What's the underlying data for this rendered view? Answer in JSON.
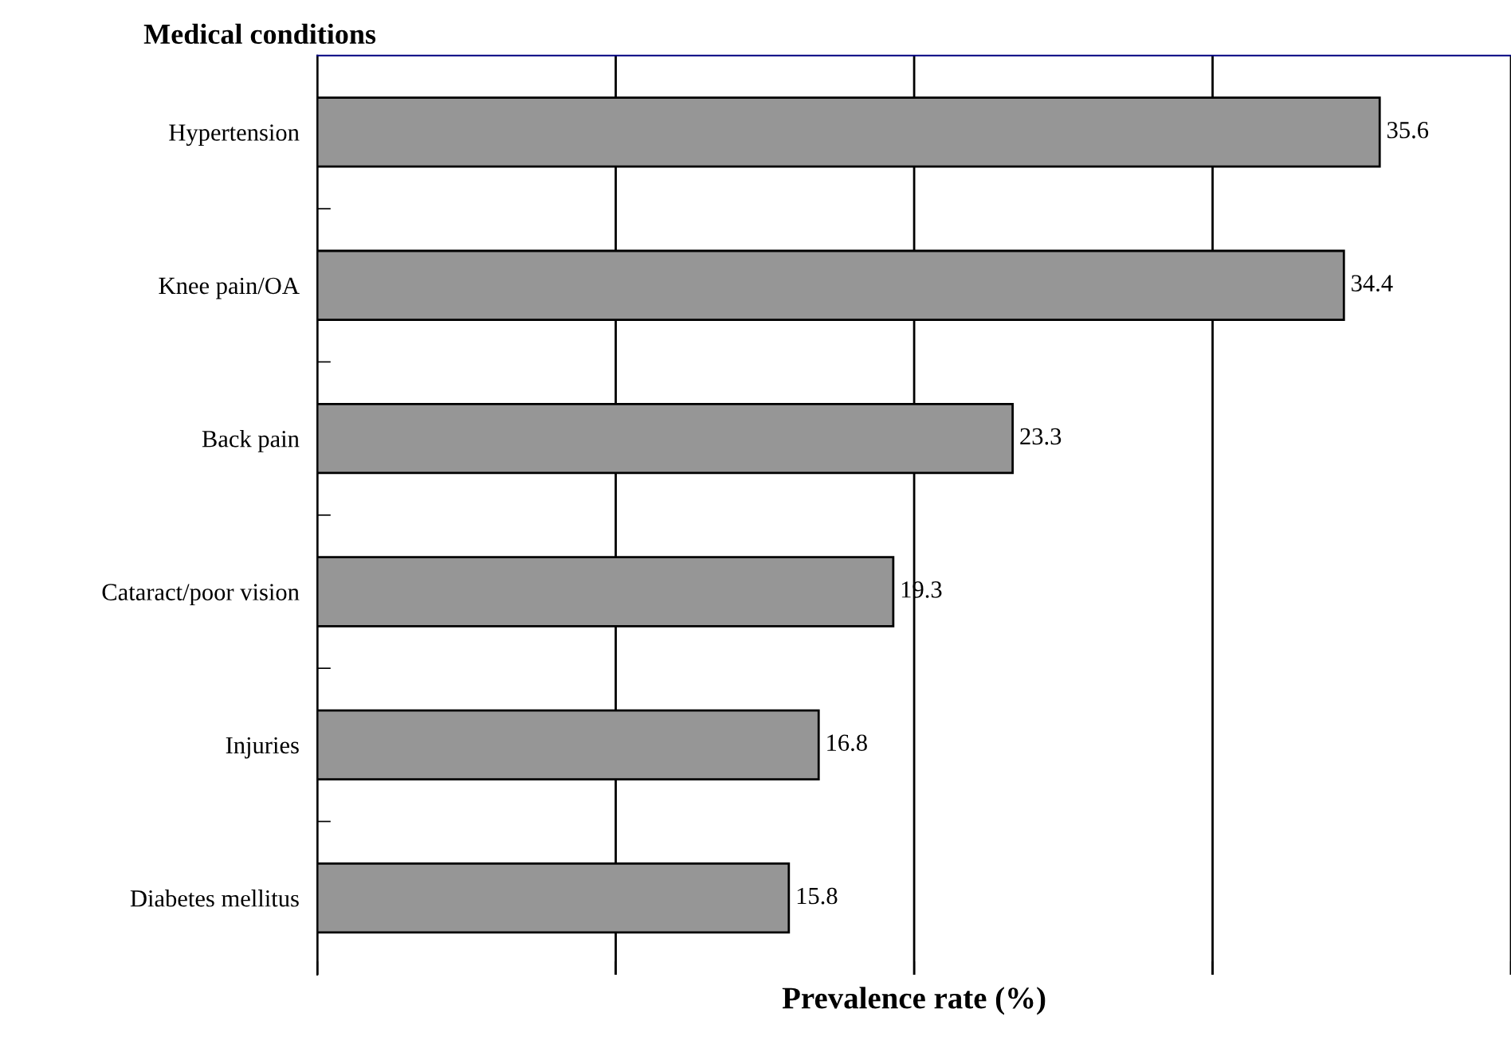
{
  "chart_data": {
    "type": "bar",
    "orientation": "horizontal",
    "title": "Medical conditions",
    "xlabel": "Prevalence rate (%)",
    "categories": [
      "Hypertension",
      "Knee pain/OA",
      "Back pain",
      "Cataract/poor vision",
      "Injuries",
      "Diabetes mellitus"
    ],
    "values": [
      35.6,
      34.4,
      23.3,
      19.3,
      16.8,
      15.8
    ],
    "color": "#969696",
    "data_labels": true,
    "xlim": [
      0,
      40
    ],
    "xticks": [
      {
        "value": 0,
        "label": null
      },
      {
        "value": 10,
        "label": null
      },
      {
        "value": 20,
        "label": null
      },
      {
        "value": 30,
        "label": null
      },
      {
        "value": 40,
        "label": null
      }
    ],
    "grid": "x",
    "legend": false
  }
}
